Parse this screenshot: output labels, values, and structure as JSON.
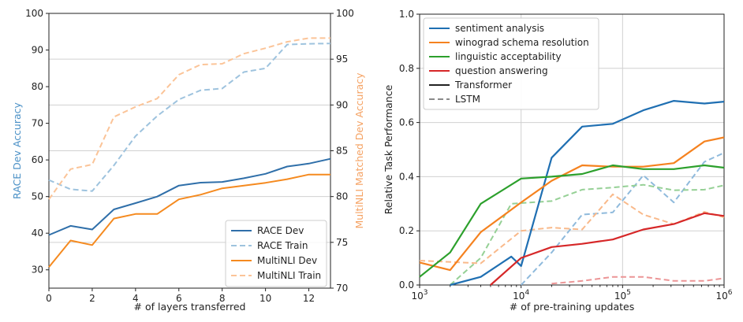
{
  "chart_data": [
    {
      "type": "line",
      "xlabel": "# of layers transferred",
      "ylabel": "RACE Dev Accuracy",
      "y2label": "MultiNLI Matched Dev Accuracy",
      "xlim": [
        0,
        13
      ],
      "ylim": [
        25,
        100
      ],
      "y2lim": [
        70,
        100
      ],
      "x": [
        0,
        1,
        2,
        3,
        4,
        5,
        6,
        7,
        8,
        9,
        10,
        11,
        12,
        13
      ],
      "xticks": [
        "0",
        "2",
        "4",
        "6",
        "8",
        "10",
        "12"
      ],
      "yticks": [
        "30",
        "40",
        "50",
        "60",
        "70",
        "80",
        "90",
        "100"
      ],
      "y2ticks": [
        "70",
        "75",
        "80",
        "85",
        "90",
        "95",
        "100"
      ],
      "grid": "horizontal",
      "legend": "bottom-right",
      "ylabel_color": "#4a90c6",
      "y2label_color": "#f5a263",
      "series": [
        {
          "name": "RACE Dev",
          "axis": "left",
          "style": "solid",
          "color": "#2f6fa9",
          "values": [
            39.5,
            42,
            41,
            46.5,
            48.2,
            50,
            53,
            53.8,
            54,
            55,
            56.2,
            58.2,
            59,
            60.3
          ]
        },
        {
          "name": "RACE Train",
          "axis": "left",
          "style": "dashed",
          "color": "#9ec3de",
          "values": [
            54.5,
            52,
            51.5,
            58.5,
            66.5,
            72,
            76.5,
            79,
            79.5,
            84,
            85,
            91.5,
            91.7,
            91.8
          ]
        },
        {
          "name": "MultiNLI Dev",
          "axis": "right",
          "style": "solid",
          "color": "#f58a1f",
          "values": [
            72.3,
            75.2,
            74.7,
            77.6,
            78.1,
            78.1,
            79.7,
            80.2,
            80.9,
            81.2,
            81.5,
            81.9,
            82.4,
            82.4
          ]
        },
        {
          "name": "MultiNLI Train",
          "axis": "right",
          "style": "dashed",
          "color": "#fbc498",
          "values": [
            79.7,
            83,
            83.5,
            88.7,
            89.8,
            90.7,
            93.3,
            94.4,
            94.5,
            95.6,
            96.2,
            96.9,
            97.3,
            97.3
          ]
        }
      ]
    },
    {
      "type": "line",
      "xlabel": "# of pre-training updates",
      "ylabel": "Relative Task Performance",
      "xscale": "log",
      "xlim": [
        1000,
        1000000
      ],
      "ylim": [
        0,
        1.0
      ],
      "xticks": [
        "10^3",
        "10^4",
        "10^5",
        "10^6"
      ],
      "yticks": [
        "0.0",
        "0.2",
        "0.4",
        "0.6",
        "0.8",
        "1.0"
      ],
      "grid": "both",
      "legend": "top-left",
      "legend_entries": [
        {
          "name": "sentiment analysis",
          "style": "solid",
          "color": "#1f6fb2"
        },
        {
          "name": "winograd schema resolution",
          "style": "solid",
          "color": "#f5821f"
        },
        {
          "name": "linguistic acceptability",
          "style": "solid",
          "color": "#2ca02c"
        },
        {
          "name": "question answering",
          "style": "solid",
          "color": "#d62728"
        },
        {
          "name": "Transformer",
          "style": "solid",
          "color": "#222222"
        },
        {
          "name": "LSTM",
          "style": "dashed",
          "color": "#8a8a8a"
        }
      ],
      "series": [
        {
          "name": "sentiment analysis",
          "model": "Transformer",
          "style": "solid",
          "color": "#1f6fb2",
          "x": [
            2000,
            4000,
            8000,
            10000,
            20000,
            40000,
            80000,
            160000,
            320000,
            640000,
            1000000
          ],
          "values": [
            0.0,
            0.03,
            0.105,
            0.07,
            0.47,
            0.585,
            0.595,
            0.645,
            0.68,
            0.67,
            0.677
          ]
        },
        {
          "name": "winograd schema resolution",
          "model": "Transformer",
          "style": "solid",
          "color": "#f5821f",
          "x": [
            1000,
            2000,
            4000,
            10000,
            20000,
            40000,
            80000,
            160000,
            320000,
            640000,
            1000000
          ],
          "values": [
            0.083,
            0.055,
            0.195,
            0.305,
            0.385,
            0.442,
            0.437,
            0.437,
            0.45,
            0.53,
            0.545
          ]
        },
        {
          "name": "linguistic acceptability",
          "model": "Transformer",
          "style": "solid",
          "color": "#2ca02c",
          "x": [
            1000,
            2000,
            4000,
            10000,
            20000,
            40000,
            80000,
            160000,
            320000,
            640000,
            1000000
          ],
          "values": [
            0.03,
            0.12,
            0.3,
            0.393,
            0.4,
            0.41,
            0.442,
            0.428,
            0.428,
            0.442,
            0.433
          ]
        },
        {
          "name": "question answering",
          "model": "Transformer",
          "style": "solid",
          "color": "#d62728",
          "x": [
            5000,
            10000,
            20000,
            40000,
            80000,
            160000,
            320000,
            640000,
            1000000
          ],
          "values": [
            0.0,
            0.1,
            0.14,
            0.152,
            0.168,
            0.205,
            0.225,
            0.265,
            0.255
          ]
        },
        {
          "name": "sentiment analysis",
          "model": "LSTM",
          "style": "dashed",
          "color": "#8fbadc",
          "x": [
            10000,
            20000,
            40000,
            80000,
            160000,
            320000,
            640000,
            1000000
          ],
          "values": [
            0.0,
            0.12,
            0.26,
            0.268,
            0.405,
            0.305,
            0.455,
            0.488
          ]
        },
        {
          "name": "winograd schema resolution",
          "model": "LSTM",
          "style": "dashed",
          "color": "#f9b98a",
          "x": [
            1000,
            4000,
            10000,
            20000,
            40000,
            80000,
            160000,
            320000,
            640000,
            1000000
          ],
          "values": [
            0.09,
            0.08,
            0.2,
            0.212,
            0.205,
            0.335,
            0.26,
            0.225,
            0.27,
            0.25
          ]
        },
        {
          "name": "linguistic acceptability",
          "model": "LSTM",
          "style": "dashed",
          "color": "#95d095",
          "x": [
            2000,
            4000,
            8000,
            20000,
            40000,
            80000,
            160000,
            320000,
            640000,
            1000000
          ],
          "values": [
            0.0,
            0.1,
            0.3,
            0.31,
            0.352,
            0.36,
            0.37,
            0.35,
            0.352,
            0.368
          ]
        },
        {
          "name": "question answering",
          "model": "LSTM",
          "style": "dashed",
          "color": "#ec9596",
          "x": [
            20000,
            40000,
            80000,
            160000,
            320000,
            640000,
            1000000
          ],
          "values": [
            0.005,
            0.015,
            0.03,
            0.03,
            0.015,
            0.015,
            0.025
          ]
        }
      ]
    }
  ]
}
